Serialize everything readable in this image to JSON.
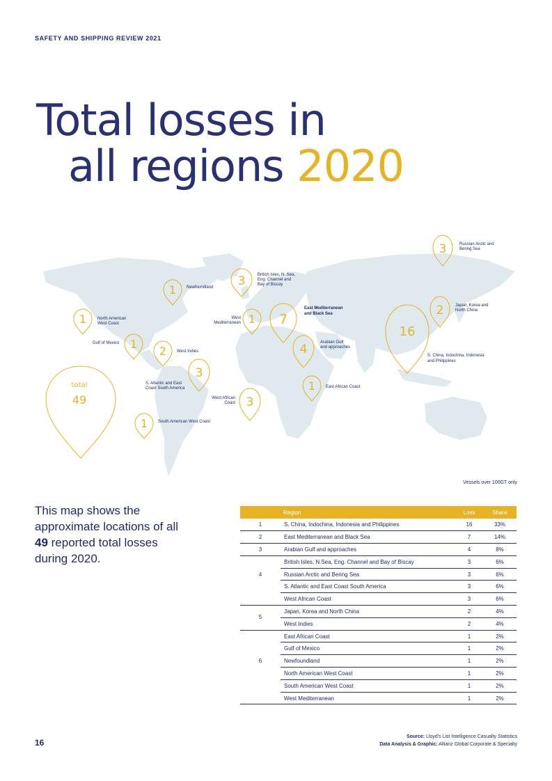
{
  "header": {
    "running_title": "SAFETY AND SHIPPING REVIEW 2021"
  },
  "title": {
    "line1": "Total losses in",
    "line2": "all regions",
    "year": "2020"
  },
  "colors": {
    "navy": "#2a3173",
    "gold": "#e6b324",
    "map_land": "#dfe9ee"
  },
  "map": {
    "total_label": "total",
    "total_value": "49",
    "pins": [
      {
        "num": "1",
        "label": "North American\nWest Coast"
      },
      {
        "num": "1",
        "label": "Gulf of Mexico"
      },
      {
        "num": "2",
        "label": "West Indies"
      },
      {
        "num": "1",
        "label": "Newfoundland"
      },
      {
        "num": "3",
        "label": "British Isles, N. Sea,\nEng. Channel and\nBay of Biscay"
      },
      {
        "num": "1",
        "label": "West\nMediterranean"
      },
      {
        "num": "7",
        "label": "East Mediterranean\nand Black Sea"
      },
      {
        "num": "4",
        "label": "Arabian Gulf\nand approaches"
      },
      {
        "num": "3",
        "label": "S. Atlantic and East\nCoast South America"
      },
      {
        "num": "3",
        "label": "West African\nCoast"
      },
      {
        "num": "1",
        "label": "East African Coast"
      },
      {
        "num": "1",
        "label": "South American West Coast"
      },
      {
        "num": "16",
        "label": "S. China, Indochina, Indonesia\nand Philippines"
      },
      {
        "num": "2",
        "label": "Japan, Korea and\nNorth China"
      },
      {
        "num": "3",
        "label": "Russian Arctic and\nBering Sea"
      }
    ],
    "vessels_note": "Vessels over 100GT only"
  },
  "intro": {
    "part1": "This map shows the approximate locations of all ",
    "bold": "49",
    "part2": " reported total losses during 2020."
  },
  "table": {
    "headers": {
      "rank": "",
      "region": "Region",
      "loss": "Loss",
      "share": "Share"
    },
    "rows": [
      {
        "rank": "1",
        "region": "S. China, Indochina, Indonesia and Philippines",
        "loss": "16",
        "share": "33%"
      },
      {
        "rank": "2",
        "region": "East Mediterranean and Black Sea",
        "loss": "7",
        "share": "14%"
      },
      {
        "rank": "3",
        "region": "Arabian Gulf and approaches",
        "loss": "4",
        "share": "8%"
      },
      {
        "rank": "4",
        "region": "British Isles, N.Sea, Eng. Channel and Bay of Biscay",
        "loss": "3",
        "share": "6%"
      },
      {
        "rank": "",
        "region": "Russian Arctic and Bering Sea",
        "loss": "3",
        "share": "6%"
      },
      {
        "rank": "",
        "region": "S. Atlantic and East Coast South America",
        "loss": "3",
        "share": "6%"
      },
      {
        "rank": "",
        "region": "West African Coast",
        "loss": "3",
        "share": "6%"
      },
      {
        "rank": "5",
        "region": "Japan, Korea and North China",
        "loss": "2",
        "share": "4%"
      },
      {
        "rank": "",
        "region": "West Indies",
        "loss": "2",
        "share": "4%"
      },
      {
        "rank": "6",
        "region": "East African Coast",
        "loss": "1",
        "share": "2%"
      },
      {
        "rank": "",
        "region": "Gulf of Mexico",
        "loss": "1",
        "share": "2%"
      },
      {
        "rank": "",
        "region": "Newfoundland",
        "loss": "1",
        "share": "2%"
      },
      {
        "rank": "",
        "region": "North American West Coast",
        "loss": "1",
        "share": "2%"
      },
      {
        "rank": "",
        "region": "South American West Coast",
        "loss": "1",
        "share": "2%"
      },
      {
        "rank": "",
        "region": "West Mediterranean",
        "loss": "1",
        "share": "2%"
      }
    ]
  },
  "footer": {
    "page_number": "16",
    "source_label": "Source:",
    "source_text": "Lloyd's List Intelligence Casualty Statistics",
    "analysis_label": "Data Analysis & Graphic:",
    "analysis_text": "Allianz Global Corporate & Specialty"
  }
}
